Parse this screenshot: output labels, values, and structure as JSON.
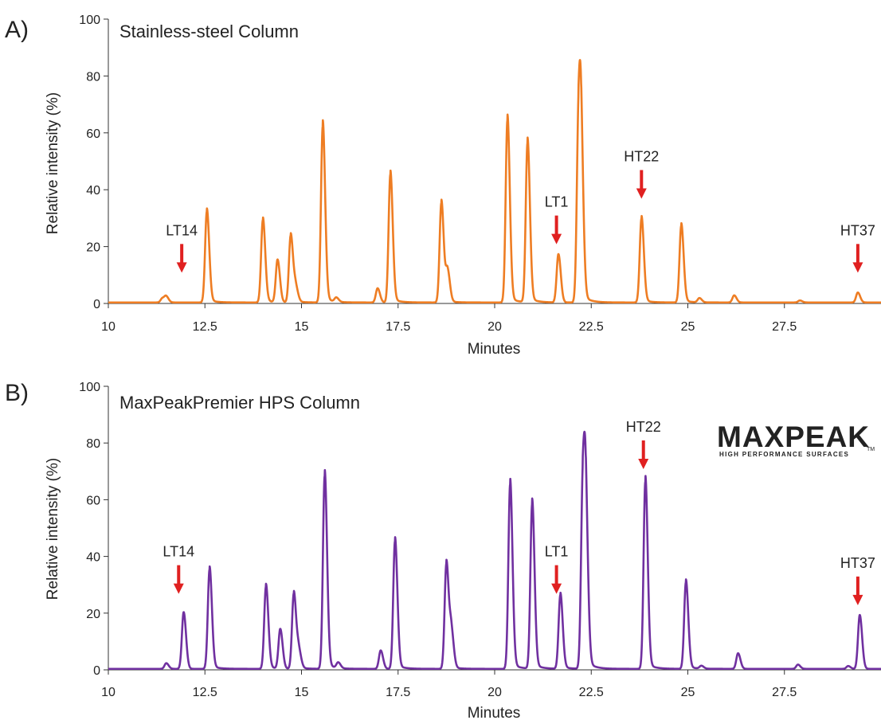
{
  "chart_data": [
    {
      "type": "line",
      "panel_label": "A)",
      "title": "Stainless-steel Column",
      "xlabel": "Minutes",
      "ylabel": "Relative intensity (%)",
      "xlim": [
        10,
        30
      ],
      "ylim": [
        0,
        100
      ],
      "xticks": [
        "10",
        "12.5",
        "15",
        "17.5",
        "20",
        "22.5",
        "25",
        "27.5"
      ],
      "yticks": [
        "0",
        "20",
        "40",
        "60",
        "80",
        "100"
      ],
      "grid": false,
      "color": "#ee7d23",
      "peaks": [
        {
          "x": 11.4,
          "y": 1.5
        },
        {
          "x": 11.5,
          "y": 2
        },
        {
          "x": 12.55,
          "y": 32
        },
        {
          "x": 14.0,
          "y": 29
        },
        {
          "x": 14.38,
          "y": 15
        },
        {
          "x": 14.72,
          "y": 23.5
        },
        {
          "x": 14.85,
          "y": 5
        },
        {
          "x": 15.55,
          "y": 62
        },
        {
          "x": 15.9,
          "y": 1.5
        },
        {
          "x": 16.97,
          "y": 5
        },
        {
          "x": 17.3,
          "y": 45
        },
        {
          "x": 18.62,
          "y": 35
        },
        {
          "x": 18.78,
          "y": 11
        },
        {
          "x": 20.33,
          "y": 64
        },
        {
          "x": 20.85,
          "y": 56
        },
        {
          "x": 21.65,
          "y": 17
        },
        {
          "x": 22.17,
          "y": 61
        },
        {
          "x": 22.24,
          "y": 43
        },
        {
          "x": 23.8,
          "y": 29.5
        },
        {
          "x": 24.83,
          "y": 27
        },
        {
          "x": 25.3,
          "y": 1.5
        },
        {
          "x": 26.2,
          "y": 2.5
        },
        {
          "x": 27.9,
          "y": 0.7
        },
        {
          "x": 29.4,
          "y": 3.5
        }
      ],
      "annotations": [
        {
          "label": "LT14",
          "x": 11.9,
          "label_y": 24
        },
        {
          "label": "LT1",
          "x": 21.6,
          "label_y": 34
        },
        {
          "label": "HT22",
          "x": 23.8,
          "label_y": 50
        },
        {
          "label": "HT37",
          "x": 29.4,
          "label_y": 24
        }
      ]
    },
    {
      "type": "line",
      "panel_label": "B)",
      "title": "MaxPeakPremier HPS Column",
      "xlabel": "Minutes",
      "ylabel": "Relative intensity (%)",
      "xlim": [
        10,
        30
      ],
      "ylim": [
        0,
        100
      ],
      "xticks": [
        "10",
        "12.5",
        "15",
        "17.5",
        "20",
        "22.5",
        "25",
        "27.5"
      ],
      "yticks": [
        "0",
        "20",
        "40",
        "60",
        "80",
        "100"
      ],
      "grid": false,
      "color": "#7030a0",
      "peaks": [
        {
          "x": 11.5,
          "y": 2
        },
        {
          "x": 11.95,
          "y": 20
        },
        {
          "x": 12.62,
          "y": 35
        },
        {
          "x": 14.08,
          "y": 29
        },
        {
          "x": 14.45,
          "y": 14
        },
        {
          "x": 14.8,
          "y": 26.5
        },
        {
          "x": 14.93,
          "y": 6
        },
        {
          "x": 15.6,
          "y": 68
        },
        {
          "x": 15.95,
          "y": 2
        },
        {
          "x": 17.05,
          "y": 6.5
        },
        {
          "x": 17.42,
          "y": 45
        },
        {
          "x": 18.75,
          "y": 37
        },
        {
          "x": 18.88,
          "y": 12.5
        },
        {
          "x": 20.4,
          "y": 65
        },
        {
          "x": 20.97,
          "y": 58
        },
        {
          "x": 21.7,
          "y": 26
        },
        {
          "x": 22.28,
          "y": 63
        },
        {
          "x": 22.36,
          "y": 46
        },
        {
          "x": 23.9,
          "y": 66
        },
        {
          "x": 24.95,
          "y": 30.5
        },
        {
          "x": 25.35,
          "y": 1
        },
        {
          "x": 26.3,
          "y": 5.5
        },
        {
          "x": 27.85,
          "y": 1.5
        },
        {
          "x": 29.15,
          "y": 1
        },
        {
          "x": 29.45,
          "y": 19
        }
      ],
      "annotations": [
        {
          "label": "LT14",
          "x": 11.82,
          "label_y": 40
        },
        {
          "label": "LT1",
          "x": 21.6,
          "label_y": 40
        },
        {
          "label": "HT22",
          "x": 23.85,
          "label_y": 84
        },
        {
          "label": "HT37",
          "x": 29.4,
          "label_y": 36
        }
      ],
      "logo": {
        "text": "MAXPEAK",
        "trademark": "TM",
        "tagline": "HIGH PERFORMANCE SURFACES",
        "color_dark": "#1a5f8a",
        "color_light": "#2e9fd6"
      }
    }
  ],
  "arrow_color": "#e02020"
}
